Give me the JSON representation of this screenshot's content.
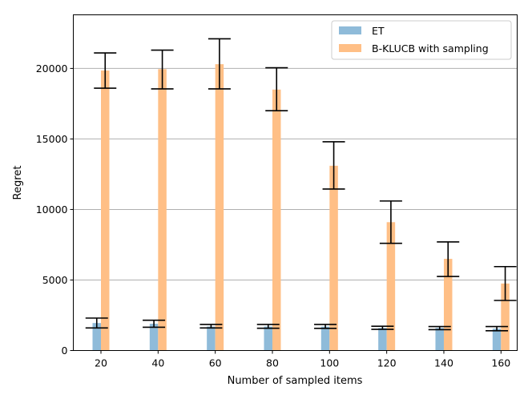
{
  "chart_data": {
    "type": "bar",
    "title": "",
    "xlabel": "Number of sampled items",
    "ylabel": "Regret",
    "categories": [
      "20",
      "40",
      "60",
      "80",
      "100",
      "120",
      "140",
      "160"
    ],
    "ylim": [
      0,
      23800
    ],
    "yticks": [
      0,
      5000,
      10000,
      15000,
      20000
    ],
    "ytick_labels": [
      "0",
      "5000",
      "10000",
      "15000",
      "20000"
    ],
    "grid": "horizontal",
    "legend_position": "top-right",
    "series": [
      {
        "name": "ET",
        "color": "#8fbbd9",
        "values": [
          1950,
          1900,
          1700,
          1700,
          1700,
          1600,
          1600,
          1550
        ],
        "err_low": [
          1600,
          1650,
          1600,
          1580,
          1570,
          1500,
          1480,
          1400
        ],
        "err_high": [
          2300,
          2150,
          1850,
          1850,
          1850,
          1720,
          1700,
          1700
        ]
      },
      {
        "name": "B-KLUCB with sampling",
        "color": "#ffbf86",
        "values": [
          19850,
          19950,
          20300,
          18500,
          13100,
          9100,
          6500,
          4750
        ],
        "err_low": [
          18600,
          18550,
          18550,
          17000,
          11450,
          7600,
          5250,
          3550
        ],
        "err_high": [
          21100,
          21300,
          22100,
          20050,
          14800,
          10600,
          7700,
          5950
        ]
      }
    ]
  }
}
